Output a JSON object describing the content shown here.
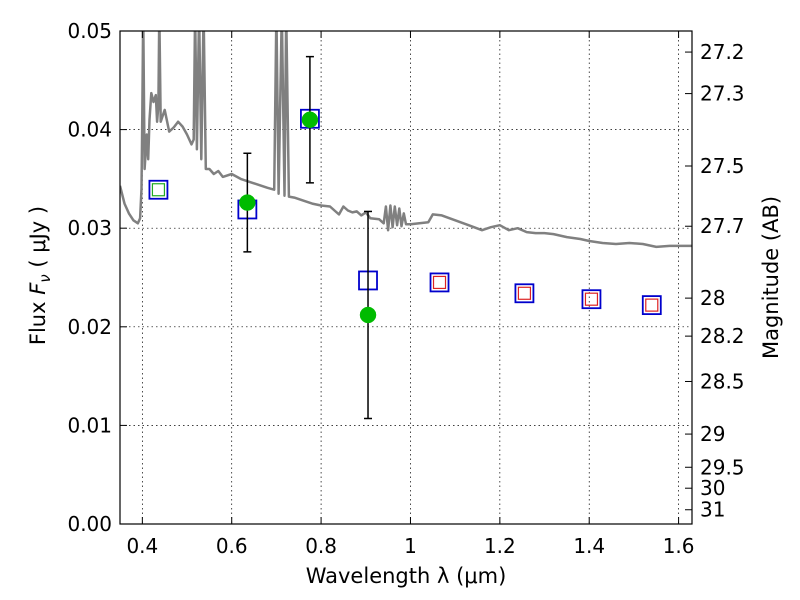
{
  "chart_data": {
    "type": "scatter",
    "xlabel": "Wavelength  λ (μm)",
    "ylabel": "Flux  F_ν  ( μJy )",
    "y2label": "Magnitude (AB)",
    "xlim": [
      0.35,
      1.63
    ],
    "ylim": [
      0.0,
      0.05
    ],
    "grid": true,
    "grid_style": "dotted",
    "x_ticks": [
      0.4,
      0.6,
      0.8,
      1.0,
      1.2,
      1.4,
      1.6
    ],
    "x_tick_labels": [
      "0.4",
      "0.6",
      "0.8",
      "1",
      "1.2",
      "1.4",
      "1.6"
    ],
    "y_ticks": [
      0.0,
      0.01,
      0.02,
      0.03,
      0.04,
      0.05
    ],
    "y_tick_labels": [
      "0.00",
      "0.01",
      "0.02",
      "0.03",
      "0.04",
      "0.05"
    ],
    "y2_ticks": [
      27.2,
      27.3,
      27.5,
      27.7,
      28,
      28.2,
      28.5,
      29,
      29.5,
      30,
      31
    ],
    "y2_tick_labels": [
      "27.2",
      "27.3",
      "27.5",
      "27.7",
      "28",
      "28.2",
      "28.5",
      "29",
      "29.5",
      "30",
      "31"
    ],
    "colors": {
      "spectrum": "#808080",
      "model_box": "#0000cc",
      "model_inner_green": "#22aa22",
      "model_inner_red": "#dd2222",
      "observed": "#00bb00",
      "errorbar": "#000000"
    },
    "series": [
      {
        "kind": "spectrum",
        "points": [
          [
            0.35,
            0.0343
          ],
          [
            0.36,
            0.0325
          ],
          [
            0.37,
            0.0315
          ],
          [
            0.38,
            0.0308
          ],
          [
            0.39,
            0.0305
          ],
          [
            0.395,
            0.031
          ],
          [
            0.398,
            0.034
          ],
          [
            0.4,
            0.0415
          ],
          [
            0.402,
            0.052
          ],
          [
            0.405,
            0.036
          ],
          [
            0.41,
            0.0395
          ],
          [
            0.413,
            0.037
          ],
          [
            0.416,
            0.041
          ],
          [
            0.42,
            0.0437
          ],
          [
            0.425,
            0.0428
          ],
          [
            0.43,
            0.0435
          ],
          [
            0.433,
            0.0408
          ],
          [
            0.436,
            0.0425
          ],
          [
            0.438,
            0.052
          ],
          [
            0.441,
            0.0408
          ],
          [
            0.45,
            0.042
          ],
          [
            0.46,
            0.0398
          ],
          [
            0.47,
            0.0402
          ],
          [
            0.48,
            0.0408
          ],
          [
            0.49,
            0.0403
          ],
          [
            0.5,
            0.0395
          ],
          [
            0.51,
            0.0385
          ],
          [
            0.515,
            0.039
          ],
          [
            0.518,
            0.052
          ],
          [
            0.522,
            0.038
          ],
          [
            0.527,
            0.052
          ],
          [
            0.532,
            0.037
          ],
          [
            0.537,
            0.052
          ],
          [
            0.542,
            0.036
          ],
          [
            0.55,
            0.036
          ],
          [
            0.56,
            0.0355
          ],
          [
            0.57,
            0.0358
          ],
          [
            0.58,
            0.0352
          ],
          [
            0.6,
            0.0355
          ],
          [
            0.62,
            0.035
          ],
          [
            0.64,
            0.0347
          ],
          [
            0.66,
            0.0344
          ],
          [
            0.68,
            0.0341
          ],
          [
            0.695,
            0.0339
          ],
          [
            0.7,
            0.052
          ],
          [
            0.705,
            0.0335
          ],
          [
            0.712,
            0.052
          ],
          [
            0.718,
            0.0333
          ],
          [
            0.722,
            0.052
          ],
          [
            0.728,
            0.0332
          ],
          [
            0.74,
            0.0331
          ],
          [
            0.76,
            0.0328
          ],
          [
            0.78,
            0.0325
          ],
          [
            0.8,
            0.0323
          ],
          [
            0.82,
            0.0322
          ],
          [
            0.83,
            0.0318
          ],
          [
            0.84,
            0.0314
          ],
          [
            0.85,
            0.0322
          ],
          [
            0.86,
            0.0318
          ],
          [
            0.87,
            0.0316
          ],
          [
            0.88,
            0.0317
          ],
          [
            0.89,
            0.0313
          ],
          [
            0.9,
            0.0316
          ],
          [
            0.91,
            0.031
          ],
          [
            0.93,
            0.0309
          ],
          [
            0.94,
            0.0305
          ],
          [
            0.945,
            0.0322
          ],
          [
            0.95,
            0.0298
          ],
          [
            0.955,
            0.0323
          ],
          [
            0.96,
            0.0301
          ],
          [
            0.965,
            0.0322
          ],
          [
            0.97,
            0.0303
          ],
          [
            0.975,
            0.032
          ],
          [
            0.98,
            0.0302
          ],
          [
            0.985,
            0.0315
          ],
          [
            0.99,
            0.0304
          ],
          [
            1.0,
            0.0304
          ],
          [
            1.02,
            0.0305
          ],
          [
            1.04,
            0.0306
          ],
          [
            1.05,
            0.0314
          ],
          [
            1.07,
            0.0313
          ],
          [
            1.1,
            0.0308
          ],
          [
            1.13,
            0.0303
          ],
          [
            1.16,
            0.0298
          ],
          [
            1.18,
            0.0301
          ],
          [
            1.2,
            0.0303
          ],
          [
            1.22,
            0.0298
          ],
          [
            1.24,
            0.03
          ],
          [
            1.26,
            0.0296
          ],
          [
            1.28,
            0.0295
          ],
          [
            1.3,
            0.0295
          ],
          [
            1.32,
            0.0294
          ],
          [
            1.35,
            0.0291
          ],
          [
            1.38,
            0.0289
          ],
          [
            1.4,
            0.0287
          ],
          [
            1.43,
            0.0285
          ],
          [
            1.46,
            0.0284
          ],
          [
            1.49,
            0.0285
          ],
          [
            1.52,
            0.0284
          ],
          [
            1.55,
            0.0281
          ],
          [
            1.58,
            0.0282
          ],
          [
            1.61,
            0.0282
          ],
          [
            1.63,
            0.0282
          ]
        ]
      },
      {
        "kind": "model",
        "x": [
          0.436,
          0.635,
          0.775,
          0.905,
          1.065,
          1.255,
          1.405,
          1.54
        ],
        "y": [
          0.0339,
          0.0319,
          0.0411,
          0.0247,
          0.0245,
          0.0234,
          0.0228,
          0.0222
        ],
        "inner": [
          "green",
          "none",
          "none",
          "none",
          "red",
          "red",
          "red",
          "red"
        ]
      },
      {
        "kind": "observed",
        "x": [
          0.635,
          0.775,
          0.905
        ],
        "y": [
          0.0326,
          0.041,
          0.0212
        ],
        "yerr": [
          0.005,
          0.0064,
          0.0105
        ]
      }
    ]
  }
}
